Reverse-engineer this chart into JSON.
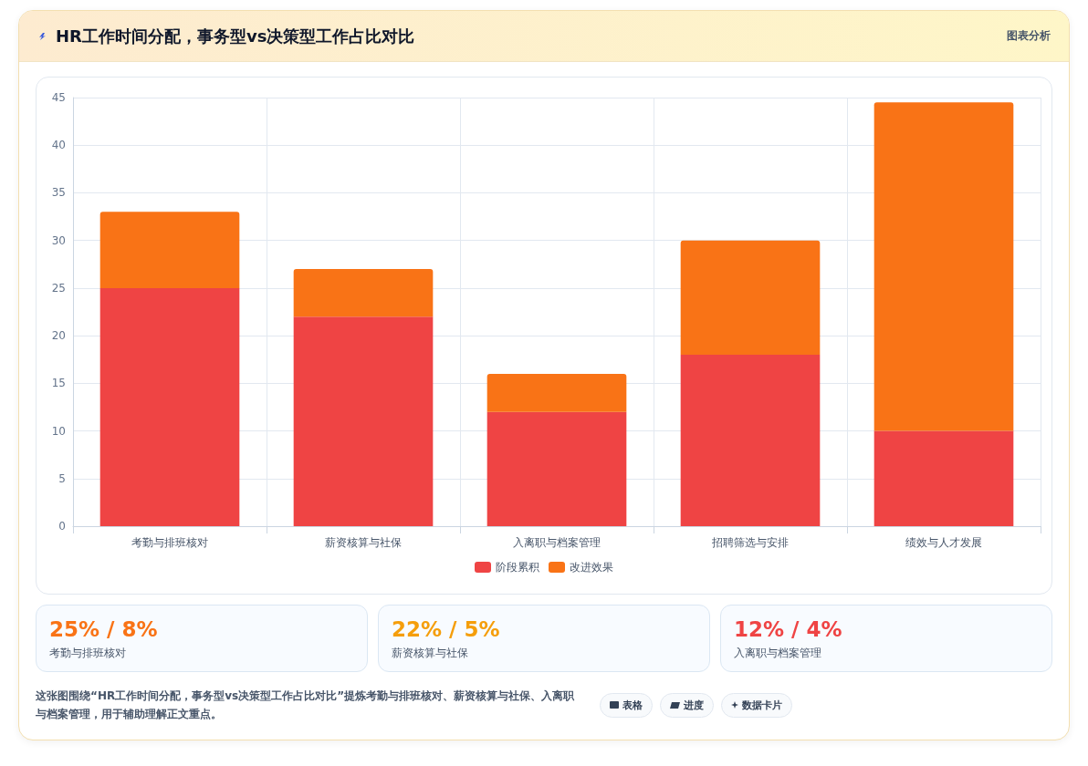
{
  "chart_data": [
    {
      "type": "bar",
      "title": "HR工作时间分配，事务型vs决策型工作占比对比",
      "annotations": [
        "图表分析",
        "这张图围绕“HR工作时间分配，事务型vs决策型工作占比对比”提炼考勤与排班核对、薪资核算与社保、入离职与档案管理，用于辅助理解正文重点。",
        "表格",
        "进度",
        "数据卡片"
      ],
      "categories": [
        "考勤与排班核对",
        "薪资核算与社保",
        "入离职与档案管理",
        "招聘筛选与安排",
        "绩效与人才发展"
      ],
      "series": [
        {
          "name": "阶段累积",
          "color": "#ef4444",
          "values": [
            25,
            22,
            12,
            18,
            10
          ]
        },
        {
          "name": "改进效果",
          "color": "#f97316",
          "values": [
            8,
            5,
            4,
            12,
            34.5
          ]
        }
      ],
      "stacked": true,
      "ylim": [
        0,
        45
      ],
      "yticks": [
        0,
        5,
        10,
        15,
        20,
        25,
        30,
        35,
        40,
        45
      ],
      "grid": true,
      "legend": "bottom"
    },
    {
      "type": "other",
      "title": "25% / 8%",
      "subtitle": "考勤与排班核对"
    },
    {
      "type": "other",
      "title": "22% / 5%",
      "subtitle": "薪资核算与社保"
    },
    {
      "type": "other",
      "title": "12% / 4%",
      "subtitle": "入离职与档案管理"
    }
  ]
}
